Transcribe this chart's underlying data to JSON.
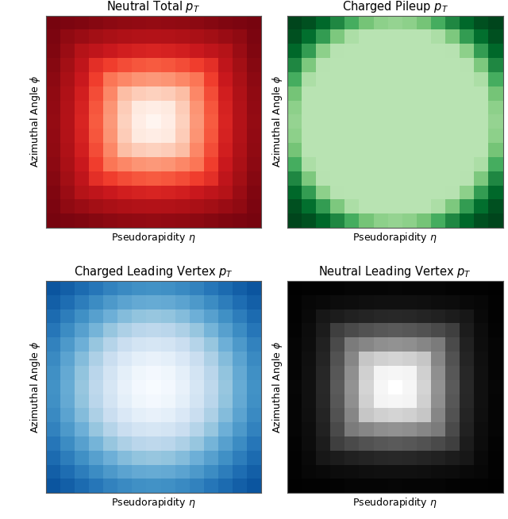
{
  "titles": [
    "Neutral Total $p_T$",
    "Charged Pileup $p_T$",
    "Charged Leading Vertex $p_T$",
    "Neutral Leading Vertex $p_T$"
  ],
  "xlabel": "Pseudorapidity $\\eta$",
  "ylabel": "Azimuthal Angle $\\phi$",
  "grid_size": 15,
  "fig_width": 6.4,
  "fig_height": 6.54,
  "background_color": "#ffffff"
}
